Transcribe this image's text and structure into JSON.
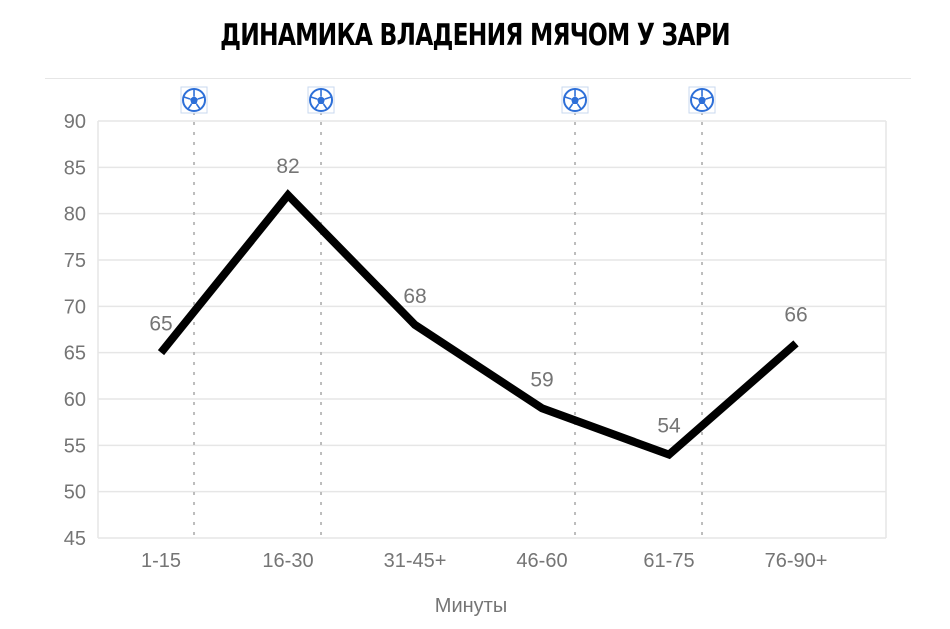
{
  "chart_data": {
    "type": "line",
    "title": "ДИНАМИКА ВЛАДЕНИЯ МЯЧОМ У ЗАРИ",
    "xlabel": "Минуты",
    "ylabel": "",
    "categories": [
      "1-15",
      "16-30",
      "31-45+",
      "46-60",
      "61-75",
      "76-90+"
    ],
    "values": [
      65,
      82,
      68,
      59,
      54,
      66
    ],
    "ylim": [
      45,
      90
    ],
    "yticks": [
      45,
      50,
      55,
      60,
      65,
      70,
      75,
      80,
      85,
      90
    ],
    "grid": true,
    "line_color": "#000000",
    "goal_markers": [
      {
        "after_category": 0,
        "icon": "soccer-ball-icon"
      },
      {
        "after_category": 1,
        "icon": "soccer-ball-icon"
      },
      {
        "after_category": 3,
        "icon": "soccer-ball-icon"
      },
      {
        "after_category": 4,
        "icon": "soccer-ball-icon"
      }
    ],
    "colors": {
      "grid": "#e6e6e6",
      "text": "#757575",
      "marker": "#2d6fd8"
    }
  }
}
